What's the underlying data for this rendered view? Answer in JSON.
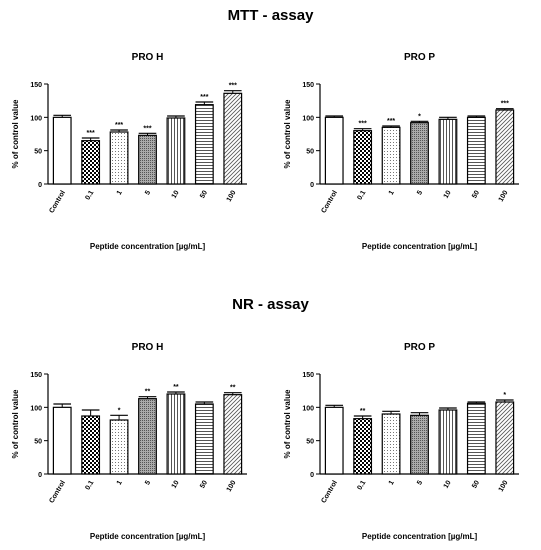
{
  "sections": [
    {
      "title": "MTT - assay"
    },
    {
      "title": "NR - assay"
    }
  ],
  "chart_data": [
    {
      "type": "bar",
      "title": "PRO H",
      "xlabel": "Peptide concentration [µg/mL]",
      "ylabel": "% of control value",
      "ylim": [
        0,
        150
      ],
      "yticks": [
        0,
        50,
        100,
        150
      ],
      "categories": [
        "Control",
        "0.1",
        "1",
        "5",
        "10",
        "50",
        "100"
      ],
      "values": [
        100,
        65,
        78,
        73,
        99,
        119,
        136
      ],
      "errors": [
        3,
        4,
        3,
        3,
        3,
        4,
        4
      ],
      "significance": [
        "",
        "***",
        "***",
        "***",
        "",
        "***",
        "***"
      ]
    },
    {
      "type": "bar",
      "title": "PRO P",
      "xlabel": "Peptide concentration [µg/mL]",
      "ylabel": "% of control value",
      "ylim": [
        0,
        150
      ],
      "yticks": [
        0,
        50,
        100,
        150
      ],
      "categories": [
        "Control",
        "0.1",
        "1",
        "5",
        "10",
        "50",
        "100"
      ],
      "values": [
        100,
        80,
        85,
        92,
        97,
        100,
        111
      ],
      "errors": [
        2,
        3,
        2,
        2,
        3,
        2,
        2
      ],
      "significance": [
        "",
        "***",
        "***",
        "*",
        "",
        "",
        "***"
      ]
    },
    {
      "type": "bar",
      "title": "PRO H",
      "xlabel": "Peptide concentration [µg/mL]",
      "ylabel": "% of control value",
      "ylim": [
        0,
        150
      ],
      "yticks": [
        0,
        50,
        100,
        150
      ],
      "categories": [
        "Control",
        "0.1",
        "1",
        "5",
        "10",
        "50",
        "100"
      ],
      "values": [
        100,
        87,
        81,
        113,
        120,
        105,
        119
      ],
      "errors": [
        5,
        9,
        7,
        3,
        3,
        3,
        3
      ],
      "significance": [
        "",
        "",
        "*",
        "**",
        "**",
        "",
        "**"
      ]
    },
    {
      "type": "bar",
      "title": "PRO P",
      "xlabel": "Peptide concentration [µg/mL]",
      "ylabel": "% of control value",
      "ylim": [
        0,
        150
      ],
      "yticks": [
        0,
        50,
        100,
        150
      ],
      "categories": [
        "Control",
        "0.1",
        "1",
        "5",
        "10",
        "50",
        "100"
      ],
      "values": [
        100,
        83,
        90,
        88,
        96,
        106,
        108
      ],
      "errors": [
        3,
        4,
        4,
        4,
        3,
        2,
        3
      ],
      "significance": [
        "",
        "**",
        "",
        "",
        "",
        "",
        "*"
      ]
    }
  ]
}
